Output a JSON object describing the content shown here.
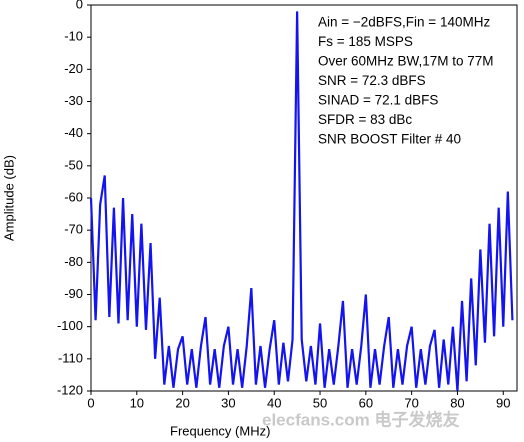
{
  "chart_data": {
    "type": "line",
    "xlabel": "Frequency (MHz)",
    "ylabel": "Amplitude (dB)",
    "annotations": [
      "Ain = −2dBFS,Fin = 140MHz",
      " Fs = 185 MSPS",
      "Over 60MHz BW,17M to 77M",
      "SNR = 72.3 dBFS",
      "SINAD  = 72.1 dBFS",
      "SFDR  = 83 dBc",
      "SNR BOOST Filter # 40"
    ],
    "watermark": "elecfans.com 电子发烧友",
    "xlim": [
      0,
      93
    ],
    "ylim": [
      -120,
      0
    ],
    "xticks": [
      0,
      10,
      20,
      30,
      40,
      50,
      60,
      70,
      80,
      90
    ],
    "yticks": [
      0,
      -10,
      -20,
      -30,
      -40,
      -50,
      -60,
      -70,
      -80,
      -90,
      -100,
      -110,
      -120
    ],
    "grid": false,
    "x": [
      0,
      1,
      2,
      3,
      4,
      5,
      6,
      7,
      8,
      9,
      10,
      11,
      12,
      13,
      14,
      15,
      16,
      17,
      18,
      19,
      20,
      21,
      22,
      23,
      24,
      25,
      26,
      27,
      28,
      29,
      30,
      31,
      32,
      33,
      34,
      35,
      36,
      37,
      38,
      39,
      40,
      41,
      42,
      43,
      44,
      45,
      46,
      47,
      48,
      49,
      50,
      51,
      52,
      53,
      54,
      55,
      56,
      57,
      58,
      59,
      60,
      61,
      62,
      63,
      64,
      65,
      66,
      67,
      68,
      69,
      70,
      71,
      72,
      73,
      74,
      75,
      76,
      77,
      78,
      79,
      80,
      81,
      82,
      83,
      84,
      85,
      86,
      87,
      88,
      89,
      90,
      91,
      92
    ],
    "series": [
      {
        "color": "#1414f0",
        "values": [
          -60,
          -98,
          -62,
          -53,
          -97,
          -63,
          -99,
          -60,
          -98,
          -65,
          -100,
          -68,
          -101,
          -74,
          -110,
          -91,
          -118,
          -106,
          -119,
          -107,
          -103,
          -118,
          -107,
          -119,
          -106,
          -97,
          -118,
          -107,
          -119,
          -106,
          -100,
          -118,
          -107,
          -119,
          -106,
          -88,
          -118,
          -106,
          -119,
          -107,
          -98,
          -118,
          -105,
          -117,
          -104,
          -2,
          -104,
          -117,
          -106,
          -118,
          -99,
          -119,
          -107,
          -118,
          -106,
          -92,
          -119,
          -107,
          -118,
          -106,
          -90,
          -119,
          -107,
          -118,
          -106,
          -97,
          -119,
          -107,
          -118,
          -106,
          -100,
          -119,
          -107,
          -118,
          -106,
          -101,
          -119,
          -104,
          -118,
          -100,
          -120,
          -92,
          -117,
          -85,
          -112,
          -76,
          -105,
          -68,
          -103,
          -63,
          -100,
          -58,
          -98
        ]
      }
    ]
  }
}
